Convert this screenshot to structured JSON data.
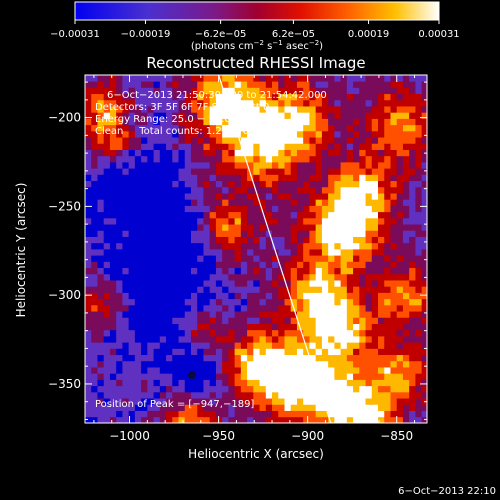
{
  "chart_data": {
    "type": "heatmap",
    "title": "Reconstructed RHESSI Image",
    "xlabel": "Heliocentric X (arcsec)",
    "ylabel": "Heliocentric Y (arcsec)",
    "xlim": [
      -1025,
      -833
    ],
    "ylim": [
      -372,
      -176
    ],
    "x_ticks": [
      -1000,
      -950,
      -900,
      -850
    ],
    "x_tick_labels": [
      "−1000",
      "−950",
      "−900",
      "−850"
    ],
    "y_ticks": [
      -200,
      -250,
      -300,
      -350
    ],
    "y_tick_labels": [
      "−200",
      "−250",
      "−300",
      "−350"
    ],
    "colorbar": {
      "ticks": [
        -0.00031,
        -0.00019,
        -6.2e-05,
        6.2e-05,
        0.00019,
        0.00031
      ],
      "tick_labels": [
        "−0.00031",
        "−0.00019",
        "−6.2e−05",
        "6.2e−05",
        "0.00019",
        "0.00031"
      ],
      "unit_prefix": "(photons cm",
      "unit_exp1": "−2",
      "unit_mid": " s",
      "unit_exp2": "−1",
      "unit_mid2": " asec",
      "unit_exp3": "−2",
      "unit_suffix": ")",
      "range": [
        -0.00031,
        0.00031
      ]
    },
    "annotations": {
      "time_range": "6−Oct−2013 21:50:30.000 to 21:54:42.000",
      "detectors": "Detectors: 3F 5F 6F 7F 8F 9F, Att 0",
      "energy": "Energy Range: 25.0 − 50.0 keV",
      "clean": "Clean     Total counts: 1.22E+04",
      "peak": "Position of Peak = [−947,−189]"
    },
    "limb_line": {
      "x1": -950,
      "y1": -176,
      "x2": -887,
      "y2": -372,
      "color": "#ffffff"
    },
    "peak_position": [
      -947,
      -189
    ],
    "colormap": [
      "#0000d0",
      "#6030c0",
      "#7a0a5a",
      "#c00000",
      "#ff5000",
      "#ffb800",
      "#ffffff"
    ],
    "grid": false
  },
  "footer": {
    "timestamp": "6−Oct−2013 22:10"
  }
}
